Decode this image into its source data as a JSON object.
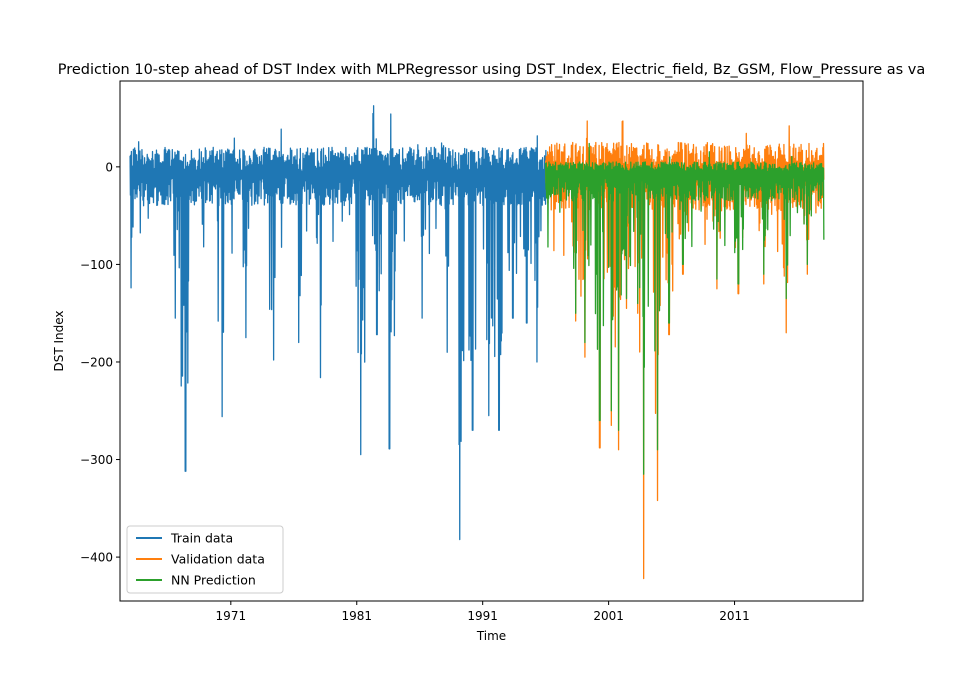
{
  "chart_data": {
    "type": "line",
    "title": "Prediction 10-step ahead of DST Index with MLPRegressor using DST_Index, Electric_field, Bz_GSM, Flow_Pressure as va",
    "xlabel": "Time",
    "ylabel": "DST Index",
    "xlim": [
      1962.2,
      2021.2
    ],
    "ylim": [
      -445,
      88
    ],
    "x_ticks": [
      1971,
      1981,
      1991,
      2001,
      2011
    ],
    "x_tick_labels": [
      "1971",
      "1981",
      "1991",
      "2001",
      "2011"
    ],
    "y_ticks": [
      0,
      -100,
      -200,
      -300,
      -400
    ],
    "y_tick_labels": [
      "0",
      "−100",
      "−200",
      "−300",
      "−400"
    ],
    "grid": false,
    "legend_position": "lower left",
    "series": [
      {
        "name": "Train data",
        "color": "#1f77b4",
        "x_range": [
          1963.0,
          1996.1
        ],
        "typical_upper": 20,
        "typical_lower": -40,
        "max_peaks": [
          [
            1982.3,
            63
          ],
          [
            1983.7,
            60
          ]
        ],
        "storm_minima": [
          [
            1963.1,
            -124
          ],
          [
            1966.6,
            -155
          ],
          [
            1967.4,
            -312
          ],
          [
            1970.3,
            -256
          ],
          [
            1972.2,
            -175
          ],
          [
            1974.4,
            -198
          ],
          [
            1976.4,
            -180
          ],
          [
            1978.1,
            -216
          ],
          [
            1981.3,
            -295
          ],
          [
            1982.6,
            -172
          ],
          [
            1983.6,
            -289
          ],
          [
            1984.0,
            -173
          ],
          [
            1986.2,
            -155
          ],
          [
            1988.2,
            -190
          ],
          [
            1989.2,
            -382
          ],
          [
            1990.2,
            -270
          ],
          [
            1991.5,
            -255
          ],
          [
            1992.3,
            -270
          ],
          [
            1993.4,
            -155
          ],
          [
            1994.5,
            -160
          ],
          [
            1995.3,
            -200
          ]
        ]
      },
      {
        "name": "Validation data",
        "color": "#ff7f0e",
        "x_range": [
          1996.0,
          2018.1
        ],
        "typical_upper": 25,
        "typical_lower": -45,
        "max_peaks": [
          [
            1999.3,
            52
          ],
          [
            2002.1,
            50
          ]
        ],
        "storm_minima": [
          [
            1998.4,
            -158
          ],
          [
            1999.1,
            -195
          ],
          [
            2000.3,
            -288
          ],
          [
            2001.2,
            -265
          ],
          [
            2001.8,
            -290
          ],
          [
            2002.4,
            -145
          ],
          [
            2003.3,
            -150
          ],
          [
            2003.8,
            -422
          ],
          [
            2004.9,
            -342
          ],
          [
            2005.8,
            -172
          ],
          [
            2006.9,
            -110
          ],
          [
            2009.6,
            -125
          ],
          [
            2011.3,
            -130
          ],
          [
            2013.3,
            -120
          ],
          [
            2015.1,
            -170
          ],
          [
            2016.8,
            -110
          ]
        ]
      },
      {
        "name": "NN Prediction",
        "color": "#2ca02c",
        "x_range": [
          1996.0,
          2018.1
        ],
        "typical_upper": 5,
        "typical_lower": -35,
        "storm_minima": [
          [
            1998.4,
            -150
          ],
          [
            1999.1,
            -180
          ],
          [
            2000.3,
            -260
          ],
          [
            2001.2,
            -250
          ],
          [
            2001.8,
            -270
          ],
          [
            2002.4,
            -135
          ],
          [
            2003.3,
            -140
          ],
          [
            2003.8,
            -315
          ],
          [
            2004.9,
            -290
          ],
          [
            2005.8,
            -160
          ],
          [
            2006.9,
            -100
          ],
          [
            2009.6,
            -115
          ],
          [
            2011.3,
            -120
          ],
          [
            2013.3,
            -110
          ],
          [
            2015.1,
            -135
          ],
          [
            2016.8,
            -100
          ]
        ]
      }
    ]
  }
}
